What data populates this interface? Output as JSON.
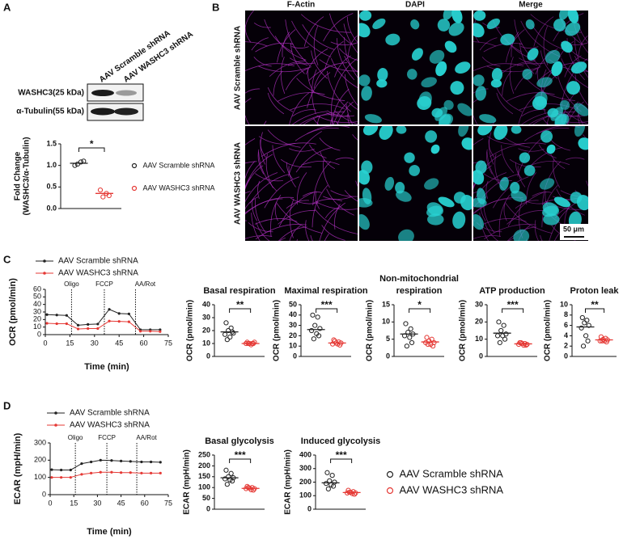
{
  "panels": [
    "A",
    "B",
    "C",
    "D"
  ],
  "blot": {
    "lanes": [
      "AAV Scramble shRNA",
      "AAV WASHC3 shRNA"
    ],
    "rows": [
      "WASHC3(25 kDa)",
      "α-Tubulin(55 kDa)"
    ]
  },
  "microscopy": {
    "channels": [
      "F-Actin",
      "DAPI",
      "Merge"
    ],
    "conditions": [
      "AAV Scramble shRNA",
      "AAV WASHC3 shRNA"
    ],
    "scale_bar": "50 μm"
  },
  "chart_data": [
    {
      "type": "dot",
      "ylabel": [
        "Fold Change",
        "(WASHC3/α-Tubulin)"
      ],
      "ylim": [
        0,
        1.5
      ],
      "yticks": [
        {
          "value": 0,
          "label": "0.0"
        },
        {
          "value": 0.5,
          "label": "0.5"
        },
        {
          "value": 1,
          "label": "1.0"
        },
        {
          "value": 1.5,
          "label": "1.5"
        }
      ],
      "significance": "*",
      "series": [
        {
          "name": "AAV Scramble shRNA",
          "color": "#222222",
          "values": [
            1.0,
            1.08,
            1.03,
            1.1
          ],
          "mean": 1.05
        },
        {
          "name": "AAV WASHC3 shRNA",
          "color": "#e53935",
          "values": [
            0.43,
            0.35,
            0.27,
            0.3
          ],
          "mean": 0.35
        }
      ]
    },
    {
      "type": "line",
      "ylabel": "OCR (pmol/min)",
      "xlabel": "Time (min)",
      "xlim": [
        0,
        75
      ],
      "xticks": [
        0,
        15,
        30,
        45,
        60,
        75
      ],
      "ylim": [
        0,
        60
      ],
      "yticks": [
        0,
        10,
        20,
        30,
        40,
        50,
        60
      ],
      "x": [
        1,
        7,
        13,
        20,
        26,
        32,
        39,
        45,
        51,
        58,
        64,
        70
      ],
      "annotations": [
        {
          "x": 16,
          "label": "Oligo"
        },
        {
          "x": 36,
          "label": "FCCP"
        },
        {
          "x": 55,
          "label": "AA/Rot"
        }
      ],
      "series": [
        {
          "name": "AAV Scramble shRNA",
          "color": "#222222",
          "values": [
            26.5,
            26,
            25.5,
            12.5,
            13.5,
            14,
            33.5,
            28,
            27.5,
            6.5,
            6.5,
            6.5
          ]
        },
        {
          "name": "AAV WASHC3 shRNA",
          "color": "#e53935",
          "values": [
            15,
            14.5,
            14.5,
            7.5,
            8,
            8,
            18,
            17.5,
            17,
            4.5,
            4.5,
            4
          ]
        }
      ]
    },
    {
      "type": "dot",
      "title": "Basal respiration",
      "ylabel": "OCR (pmol/min)",
      "ylim": [
        0,
        40
      ],
      "yticks": [
        0,
        10,
        20,
        30,
        40
      ],
      "significance": "**",
      "series": [
        {
          "color": "#222222",
          "values": [
            26,
            22,
            20,
            18,
            17,
            15,
            19,
            13
          ],
          "mean": 19
        },
        {
          "color": "#e53935",
          "values": [
            11,
            10,
            10,
            11,
            10,
            9,
            10,
            10
          ],
          "mean": 10
        }
      ]
    },
    {
      "type": "dot",
      "title": "Maximal respiration",
      "ylabel": "OCR (pmol/min)",
      "ylim": [
        0,
        50
      ],
      "yticks": [
        0,
        10,
        20,
        30,
        40,
        50
      ],
      "significance": "***",
      "series": [
        {
          "color": "#222222",
          "values": [
            40,
            38,
            30,
            27,
            25,
            22,
            20,
            17
          ],
          "mean": 26
        },
        {
          "color": "#e53935",
          "values": [
            16,
            14,
            13,
            13,
            12,
            12,
            11,
            15
          ],
          "mean": 13
        }
      ]
    },
    {
      "type": "dot",
      "title": [
        "Non-mitochondrial",
        "respiration"
      ],
      "ylabel": "OCR (pmol/min)",
      "ylim": [
        0,
        15
      ],
      "yticks": [
        0,
        5,
        10,
        15
      ],
      "significance": "*",
      "series": [
        {
          "color": "#222222",
          "values": [
            9.5,
            8,
            7,
            6.5,
            6,
            5.5,
            4,
            3
          ],
          "mean": 6.5
        },
        {
          "color": "#e53935",
          "values": [
            5.5,
            5,
            4.5,
            4,
            4,
            3.5,
            3,
            3.5
          ],
          "mean": 4.2
        }
      ]
    },
    {
      "type": "dot",
      "title": "ATP production",
      "ylabel": "OCR (pmol/min)",
      "ylim": [
        0,
        30
      ],
      "yticks": [
        0,
        10,
        20,
        30
      ],
      "significance": "***",
      "series": [
        {
          "color": "#222222",
          "values": [
            20,
            18,
            15,
            13,
            12,
            12,
            10,
            8
          ],
          "mean": 13.5
        },
        {
          "color": "#e53935",
          "values": [
            8,
            7.5,
            7.5,
            7,
            7,
            6.5,
            6.5,
            8
          ],
          "mean": 7.3
        }
      ]
    },
    {
      "type": "dot",
      "title": "Proton leak",
      "ylabel": "OCR (pmol/min)",
      "ylim": [
        0,
        10
      ],
      "yticks": [
        0,
        2,
        4,
        6,
        8,
        10
      ],
      "significance": "**",
      "series": [
        {
          "color": "#222222",
          "values": [
            7.5,
            7,
            6.5,
            6,
            5.5,
            4,
            3,
            2
          ],
          "mean": 5.7
        },
        {
          "color": "#e53935",
          "values": [
            3.8,
            3.5,
            3.3,
            3.2,
            3,
            3,
            2.8,
            3
          ],
          "mean": 3.2
        }
      ]
    },
    {
      "type": "line",
      "ylabel": "ECAR (mpH/min)",
      "xlabel": "Time (min)",
      "xlim": [
        0,
        75
      ],
      "xticks": [
        0,
        15,
        30,
        45,
        60,
        75
      ],
      "ylim": [
        0,
        300
      ],
      "yticks": [
        0,
        100,
        200,
        300
      ],
      "x": [
        1,
        7,
        13,
        20,
        26,
        32,
        39,
        45,
        51,
        58,
        64,
        70
      ],
      "annotations": [
        {
          "x": 16,
          "label": "Oligo"
        },
        {
          "x": 36,
          "label": "FCCP"
        },
        {
          "x": 55,
          "label": "AA/Rot"
        }
      ],
      "series": [
        {
          "name": "AAV Scramble shRNA",
          "color": "#222222",
          "values": [
            145,
            143,
            143,
            180,
            190,
            200,
            198,
            195,
            193,
            190,
            190,
            188
          ]
        },
        {
          "name": "AAV WASHC3 shRNA",
          "color": "#e53935",
          "values": [
            100,
            100,
            100,
            118,
            125,
            130,
            130,
            128,
            128,
            125,
            125,
            125
          ]
        }
      ]
    },
    {
      "type": "dot",
      "title": "Basal glycolysis",
      "ylabel": "ECAR (mpH/min)",
      "ylim": [
        0,
        250
      ],
      "yticks": [
        0,
        50,
        100,
        150,
        200,
        250
      ],
      "significance": "***",
      "series": [
        {
          "name": "AAV Scramble shRNA",
          "color": "#222222",
          "values": [
            180,
            165,
            150,
            145,
            140,
            135,
            130,
            115
          ],
          "mean": 145
        },
        {
          "name": "AAV WASHC3 shRNA",
          "color": "#e53935",
          "values": [
            105,
            100,
            98,
            95,
            95,
            90,
            88,
            100
          ],
          "mean": 96
        }
      ]
    },
    {
      "type": "dot",
      "title": "Induced glycolysis",
      "ylabel": "ECAR (mpH/min)",
      "ylim": [
        0,
        400
      ],
      "yticks": [
        0,
        100,
        200,
        300,
        400
      ],
      "significance": "***",
      "series": [
        {
          "color": "#222222",
          "values": [
            270,
            250,
            210,
            200,
            190,
            180,
            170,
            150
          ],
          "mean": 195
        },
        {
          "color": "#e53935",
          "values": [
            140,
            130,
            125,
            120,
            120,
            115,
            110,
            125
          ],
          "mean": 123
        }
      ]
    }
  ]
}
